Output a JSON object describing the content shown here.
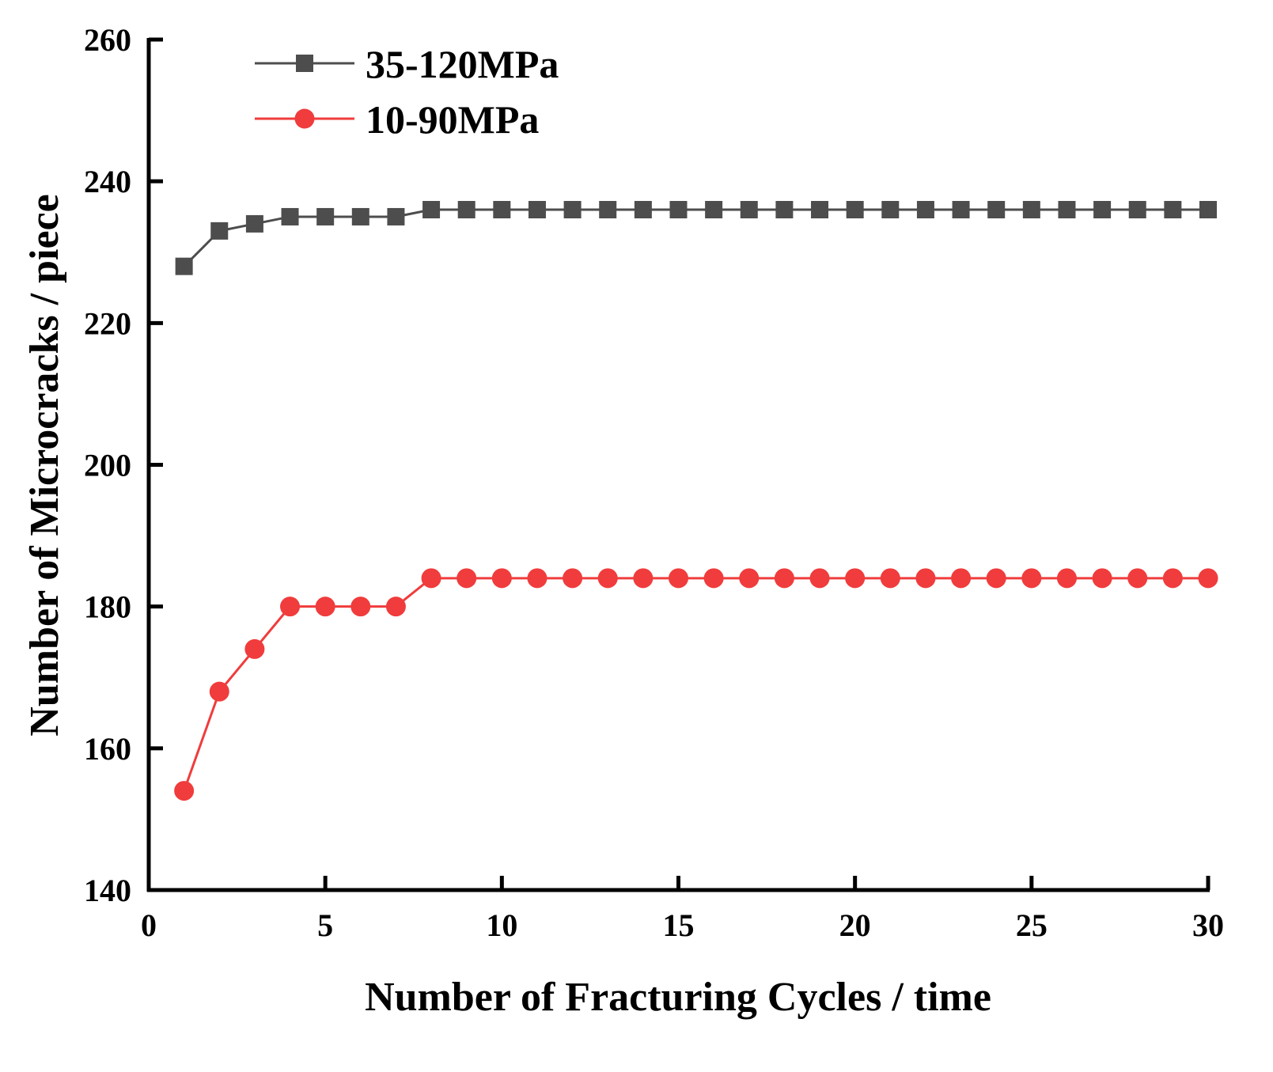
{
  "chart_data": {
    "type": "line",
    "title": "",
    "xlabel": "Number of Fracturing Cycles / time",
    "ylabel": "Number of Microcracks / piece",
    "xlim": [
      0,
      30
    ],
    "ylim": [
      140,
      260
    ],
    "xticks": [
      0,
      5,
      10,
      15,
      20,
      25,
      30
    ],
    "yticks": [
      140,
      160,
      180,
      200,
      220,
      240,
      260
    ],
    "grid": false,
    "legend_position": "top-left",
    "x": [
      1,
      2,
      3,
      4,
      5,
      6,
      7,
      8,
      9,
      10,
      11,
      12,
      13,
      14,
      15,
      16,
      17,
      18,
      19,
      20,
      21,
      22,
      23,
      24,
      25,
      26,
      27,
      28,
      29,
      30
    ],
    "series": [
      {
        "name": "35-120MPa",
        "color": "#4d4d4d",
        "marker": "square",
        "values": [
          228,
          233,
          234,
          235,
          235,
          235,
          235,
          236,
          236,
          236,
          236,
          236,
          236,
          236,
          236,
          236,
          236,
          236,
          236,
          236,
          236,
          236,
          236,
          236,
          236,
          236,
          236,
          236,
          236,
          236
        ]
      },
      {
        "name": "10-90MPa",
        "color": "#f03c3c",
        "marker": "circle",
        "values": [
          154,
          168,
          174,
          180,
          180,
          180,
          180,
          184,
          184,
          184,
          184,
          184,
          184,
          184,
          184,
          184,
          184,
          184,
          184,
          184,
          184,
          184,
          184,
          184,
          184,
          184,
          184,
          184,
          184,
          184
        ]
      }
    ]
  }
}
